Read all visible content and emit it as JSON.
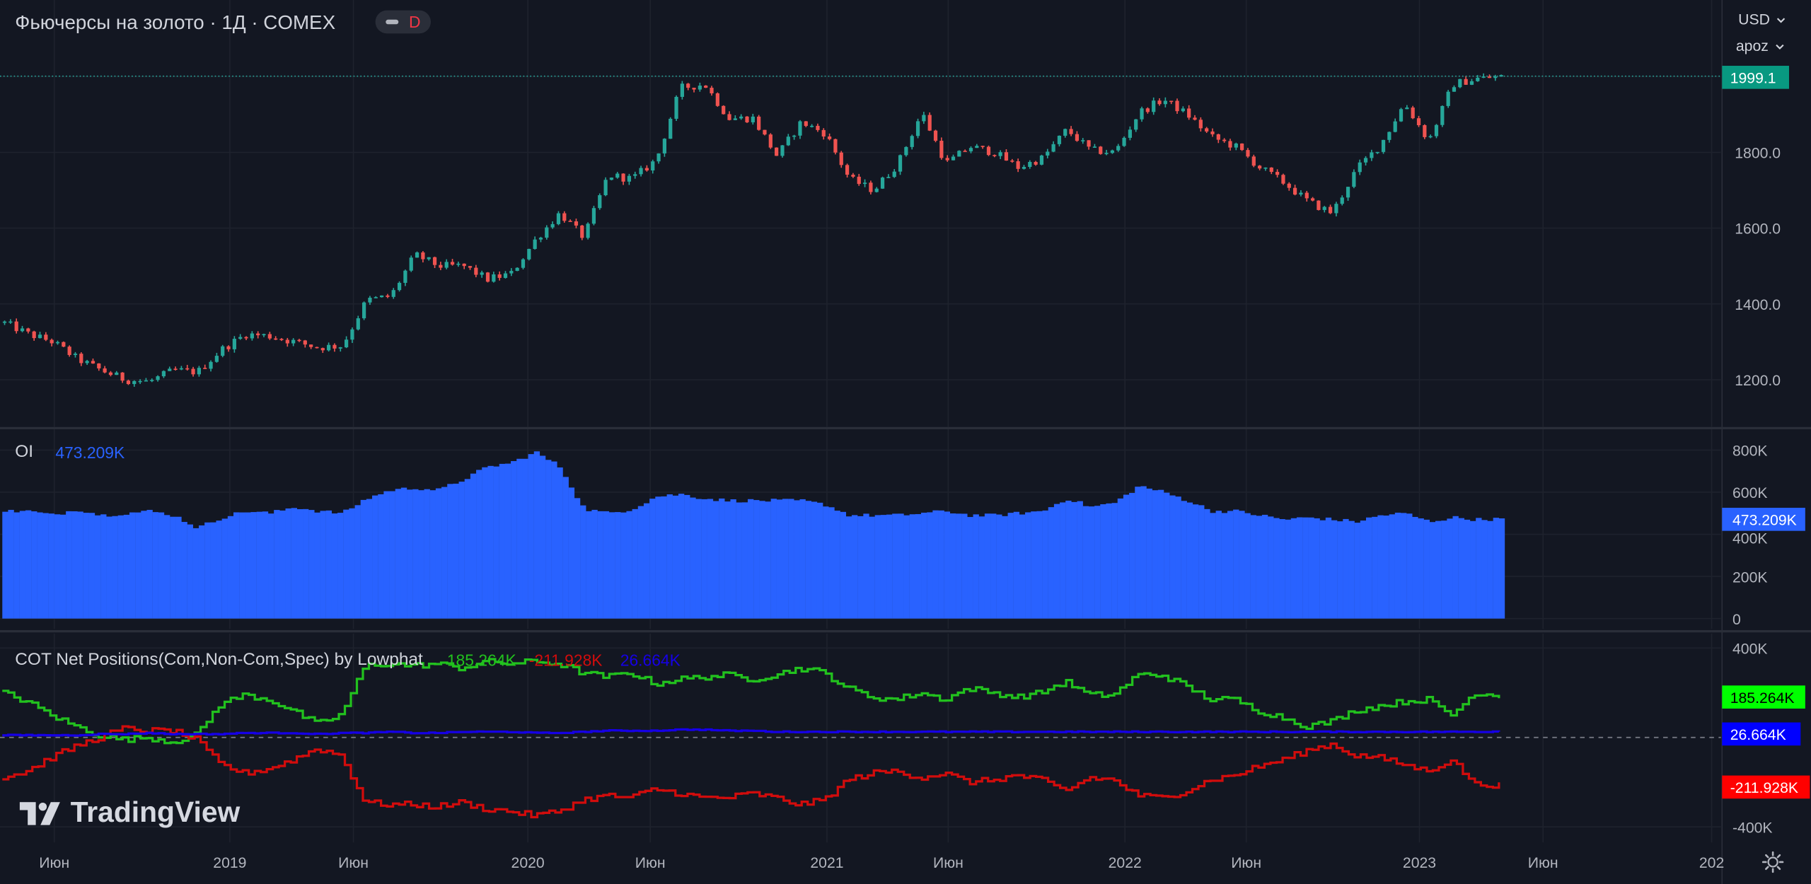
{
  "header": {
    "symbol_title": "Фьючерсы на золото · 1Д · COMEX",
    "badge_label": "D",
    "currency": "USD",
    "scale_mode": "apoz"
  },
  "colors": {
    "background": "#131722",
    "grid": "#1e222d",
    "candle_up": "#26a69a",
    "candle_down": "#ef5350",
    "oi_bars": "#2962ff",
    "com_line": "#22c11e",
    "noncom_line": "#d10c0c",
    "spec_line": "#1600e5",
    "last_price_label": "#089981"
  },
  "x_axis": {
    "ticks": [
      "Июн",
      "2019",
      "Июн",
      "2020",
      "Июн",
      "2021",
      "Июн",
      "2022",
      "Июн",
      "2023",
      "Июн",
      "202"
    ]
  },
  "watermark": {
    "text": "TradingView"
  },
  "chart_data": [
    {
      "type": "candlestick",
      "title": "Фьючерсы на золото · 1Д · COMEX",
      "y_ticks": [
        "1200.0",
        "1400.0",
        "1600.0",
        "1800.0"
      ],
      "ylim": [
        1100,
        2120
      ],
      "last_value": 1999.1,
      "last_value_label": "1999.1",
      "x": [
        "2018-03-01",
        "2018-04-01",
        "2018-05-01",
        "2018-06-01",
        "2018-07-01",
        "2018-08-01",
        "2018-09-01",
        "2018-10-01",
        "2018-11-01",
        "2018-12-01",
        "2019-01-01",
        "2019-02-01",
        "2019-03-01",
        "2019-04-01",
        "2019-05-01",
        "2019-06-01",
        "2019-07-01",
        "2019-08-01",
        "2019-09-01",
        "2019-10-01",
        "2019-11-01",
        "2019-12-01",
        "2020-01-01",
        "2020-02-01",
        "2020-03-01",
        "2020-04-01",
        "2020-05-01",
        "2020-06-01",
        "2020-07-01",
        "2020-08-01",
        "2020-09-01",
        "2020-10-01",
        "2020-11-01",
        "2020-12-01",
        "2021-01-01",
        "2021-02-01",
        "2021-03-01",
        "2021-04-01",
        "2021-05-01",
        "2021-06-01",
        "2021-07-01",
        "2021-08-01",
        "2021-09-01",
        "2021-10-01",
        "2021-11-01",
        "2021-12-01",
        "2022-01-01",
        "2022-02-01",
        "2022-03-01",
        "2022-04-01",
        "2022-05-01",
        "2022-06-01",
        "2022-07-01",
        "2022-08-01",
        "2022-09-01",
        "2022-10-01",
        "2022-11-01",
        "2022-12-01",
        "2023-01-01",
        "2023-02-01",
        "2023-03-01",
        "2023-04-01",
        "2023-05-01"
      ],
      "values": [
        1350,
        1320,
        1300,
        1255,
        1225,
        1200,
        1195,
        1225,
        1220,
        1280,
        1320,
        1315,
        1300,
        1285,
        1290,
        1410,
        1420,
        1530,
        1500,
        1500,
        1465,
        1480,
        1570,
        1640,
        1575,
        1740,
        1730,
        1780,
        1970,
        1980,
        1890,
        1890,
        1790,
        1880,
        1850,
        1730,
        1700,
        1770,
        1905,
        1770,
        1815,
        1800,
        1760,
        1785,
        1860,
        1805,
        1800,
        1905,
        1940,
        1900,
        1840,
        1815,
        1760,
        1720,
        1670,
        1640,
        1755,
        1820,
        1930,
        1830,
        1980,
        1995,
        1999.1
      ]
    },
    {
      "type": "bar",
      "title": "OI",
      "last_value_label": "473.209K",
      "y_ticks": [
        "0",
        "200K",
        "400K",
        "600K",
        "800K"
      ],
      "ylim": [
        0,
        830000
      ],
      "x": [
        "2018-03",
        "2018-04",
        "2018-05",
        "2018-06",
        "2018-07",
        "2018-08",
        "2018-09",
        "2018-10",
        "2018-11",
        "2018-12",
        "2019-01",
        "2019-02",
        "2019-03",
        "2019-04",
        "2019-05",
        "2019-06",
        "2019-07",
        "2019-08",
        "2019-09",
        "2019-10",
        "2019-11",
        "2019-12",
        "2020-01",
        "2020-02",
        "2020-03",
        "2020-04",
        "2020-05",
        "2020-06",
        "2020-07",
        "2020-08",
        "2020-09",
        "2020-10",
        "2020-11",
        "2020-12",
        "2021-01",
        "2021-02",
        "2021-03",
        "2021-04",
        "2021-05",
        "2021-06",
        "2021-07",
        "2021-08",
        "2021-09",
        "2021-10",
        "2021-11",
        "2021-12",
        "2022-01",
        "2022-02",
        "2022-03",
        "2022-04",
        "2022-05",
        "2022-06",
        "2022-07",
        "2022-08",
        "2022-09",
        "2022-10",
        "2022-11",
        "2022-12",
        "2023-01",
        "2023-02",
        "2023-03",
        "2023-04",
        "2023-05"
      ],
      "values": [
        510000,
        510000,
        490000,
        520000,
        490000,
        500000,
        510000,
        490000,
        430000,
        480000,
        510000,
        500000,
        530000,
        510000,
        500000,
        570000,
        610000,
        620000,
        610000,
        660000,
        720000,
        740000,
        790000,
        720000,
        520000,
        500000,
        520000,
        580000,
        590000,
        570000,
        560000,
        560000,
        560000,
        560000,
        540000,
        490000,
        490000,
        490000,
        500000,
        510000,
        490000,
        490000,
        500000,
        510000,
        570000,
        530000,
        550000,
        630000,
        600000,
        560000,
        510000,
        510000,
        490000,
        470000,
        480000,
        470000,
        460000,
        490000,
        500000,
        460000,
        480000,
        470000,
        473209
      ]
    },
    {
      "type": "line",
      "title": "COT Net Positions(Com,Non-Com,Spec) by Lowphat",
      "y_ticks": [
        "400K",
        "-400K"
      ],
      "ylim": [
        -460000,
        420000
      ],
      "zero_line": 0,
      "x": [
        "2018-03",
        "2018-04",
        "2018-05",
        "2018-06",
        "2018-07",
        "2018-08",
        "2018-09",
        "2018-10",
        "2018-11",
        "2018-12",
        "2019-01",
        "2019-02",
        "2019-03",
        "2019-04",
        "2019-05",
        "2019-06",
        "2019-07",
        "2019-08",
        "2019-09",
        "2019-10",
        "2019-11",
        "2019-12",
        "2020-01",
        "2020-02",
        "2020-03",
        "2020-04",
        "2020-05",
        "2020-06",
        "2020-07",
        "2020-08",
        "2020-09",
        "2020-10",
        "2020-11",
        "2020-12",
        "2021-01",
        "2021-02",
        "2021-03",
        "2021-04",
        "2021-05",
        "2021-06",
        "2021-07",
        "2021-08",
        "2021-09",
        "2021-10",
        "2021-11",
        "2021-12",
        "2022-01",
        "2022-02",
        "2022-03",
        "2022-04",
        "2022-05",
        "2022-06",
        "2022-07",
        "2022-08",
        "2022-09",
        "2022-10",
        "2022-11",
        "2022-12",
        "2023-01",
        "2023-02",
        "2023-03",
        "2023-04",
        "2023-05"
      ],
      "series": [
        {
          "name": "Com",
          "last_value_label": "185.264K",
          "values": [
            200000,
            160000,
            100000,
            50000,
            10000,
            -10000,
            0,
            -20000,
            10000,
            150000,
            190000,
            170000,
            120000,
            60000,
            100000,
            320000,
            330000,
            320000,
            330000,
            310000,
            340000,
            330000,
            340000,
            330000,
            290000,
            270000,
            290000,
            240000,
            260000,
            270000,
            280000,
            260000,
            280000,
            310000,
            290000,
            220000,
            180000,
            170000,
            200000,
            170000,
            220000,
            200000,
            180000,
            200000,
            250000,
            190000,
            190000,
            280000,
            280000,
            230000,
            170000,
            170000,
            120000,
            90000,
            50000,
            70000,
            120000,
            140000,
            160000,
            170000,
            100000,
            200000,
            185264
          ]
        },
        {
          "name": "Non-Com",
          "last_value_label": "-211.928K",
          "values": [
            -180000,
            -150000,
            -90000,
            -40000,
            0,
            40000,
            30000,
            30000,
            -10000,
            -120000,
            -160000,
            -140000,
            -100000,
            -50000,
            -80000,
            -290000,
            -300000,
            -300000,
            -310000,
            -290000,
            -320000,
            -330000,
            -350000,
            -330000,
            -280000,
            -260000,
            -270000,
            -230000,
            -250000,
            -270000,
            -270000,
            -250000,
            -270000,
            -300000,
            -280000,
            -190000,
            -160000,
            -150000,
            -180000,
            -160000,
            -200000,
            -190000,
            -170000,
            -190000,
            -240000,
            -180000,
            -190000,
            -260000,
            -270000,
            -240000,
            -190000,
            -170000,
            -130000,
            -100000,
            -60000,
            -30000,
            -80000,
            -90000,
            -120000,
            -150000,
            -100000,
            -210000,
            -211928
          ]
        },
        {
          "name": "Spec",
          "last_value_label": "26.664K",
          "values": [
            10000,
            10000,
            10000,
            10000,
            15000,
            15000,
            20000,
            15000,
            15000,
            15000,
            20000,
            20000,
            20000,
            15000,
            20000,
            20000,
            25000,
            20000,
            20000,
            25000,
            25000,
            25000,
            20000,
            20000,
            25000,
            30000,
            30000,
            30000,
            35000,
            35000,
            30000,
            30000,
            25000,
            25000,
            25000,
            25000,
            25000,
            25000,
            25000,
            25000,
            25000,
            25000,
            25000,
            25000,
            25000,
            25000,
            25000,
            25000,
            25000,
            25000,
            25000,
            25000,
            25000,
            25000,
            25000,
            25000,
            25000,
            25000,
            25000,
            25000,
            25000,
            25000,
            26664
          ]
        }
      ]
    }
  ]
}
